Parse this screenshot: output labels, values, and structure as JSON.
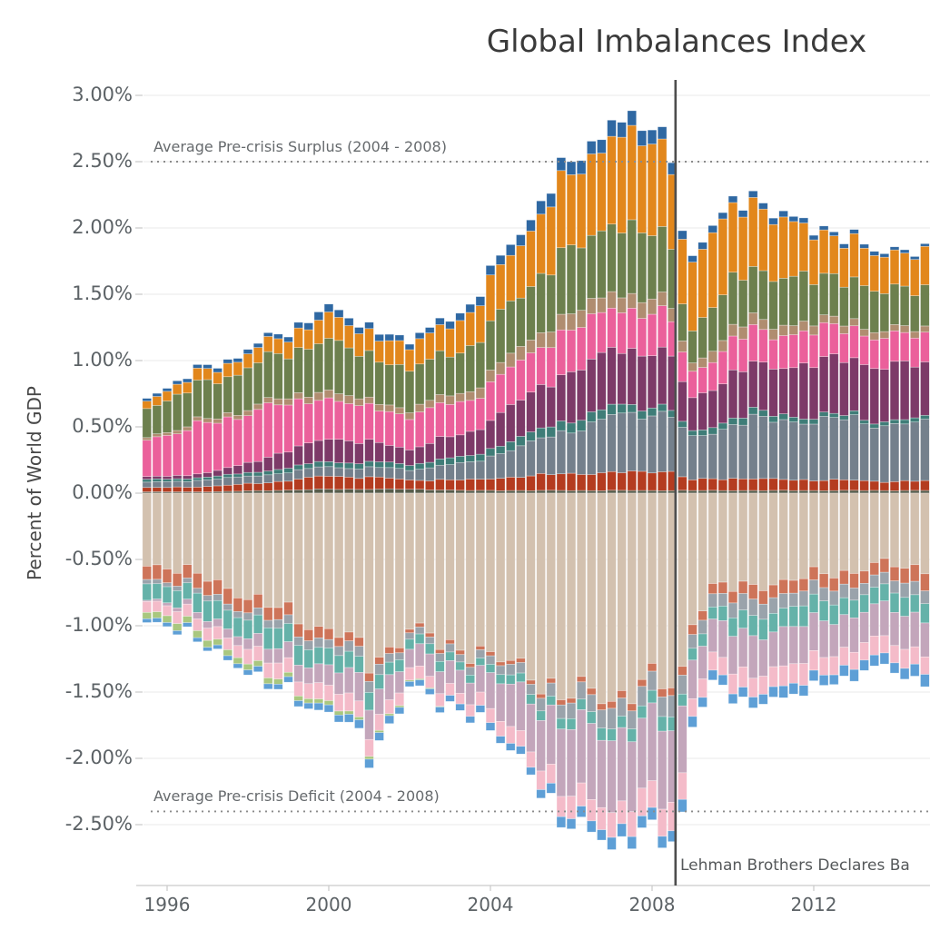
{
  "title": "Global Imbalances Index",
  "y_axis": {
    "label": "Percent of World GDP",
    "tick_labels": [
      "3.00%",
      "2.50%",
      "2.00%",
      "1.50%",
      "1.00%",
      "0.50%",
      "0.00%",
      "-0.50%",
      "-1.00%",
      "-1.50%",
      "-2.00%",
      "-2.50%"
    ],
    "tick_values": [
      3.0,
      2.5,
      2.0,
      1.5,
      1.0,
      0.5,
      0.0,
      -0.5,
      -1.0,
      -1.5,
      -2.0,
      -2.5
    ]
  },
  "x_axis": {
    "tick_labels": [
      "1996",
      "2000",
      "2004",
      "2008",
      "2012"
    ],
    "tick_values": [
      1996,
      2000,
      2004,
      2008,
      2012
    ]
  },
  "annotations": {
    "surplus": {
      "label": "Average Pre-crisis Surplus (2004 - 2008)",
      "value": 2.5
    },
    "deficit": {
      "label": "Average Pre-crisis Deficit (2004 - 2008)",
      "value": -2.4
    },
    "lehman": {
      "label": "Lehman Brothers Declares Ba",
      "x": 2008.58
    }
  },
  "colors": {
    "grid": "#e8e8e8",
    "axis": "#c9c9c9",
    "dotted_line": "#8b8b8b",
    "lehman_line": "#4e4e4e",
    "title_text": "#3a3a3a",
    "tick_text": "#5c6266"
  },
  "chart_data": {
    "type": "bar",
    "stacked": true,
    "orientation": "diverging",
    "x_start": 1995.5,
    "x_step": 0.25,
    "n_bars": 78,
    "xlim": [
      1995.3,
      2014.9
    ],
    "ylim": [
      -2.96,
      3.1
    ],
    "ylabel": "Percent of World GDP",
    "title": "Global Imbalances Index",
    "grid": true,
    "legend": "none (cropped out of view)",
    "units": "percent of world GDP, quarterly",
    "anchor_years": [
      1995.5,
      1997,
      1998.5,
      2000,
      2001,
      2002,
      2003.5,
      2005,
      2006,
      2007,
      2008,
      2008.5,
      2008.75,
      2009,
      2009.5,
      2010.5,
      2011.5,
      2012.5,
      2013.5,
      2014.75
    ],
    "positive_series": [
      {
        "name": "surplus-darkolive",
        "color": "#575c4b",
        "anchors": [
          0.01,
          0.01,
          0.02,
          0.03,
          0.03,
          0.03,
          0.02,
          0.02,
          0.02,
          0.02,
          0.02,
          0.02,
          0.02,
          0.02,
          0.02,
          0.02,
          0.02,
          0.02,
          0.02,
          0.02
        ]
      },
      {
        "name": "surplus-darkred",
        "color": "#b43c20",
        "anchors": [
          0.03,
          0.04,
          0.06,
          0.1,
          0.09,
          0.07,
          0.08,
          0.11,
          0.13,
          0.13,
          0.15,
          0.14,
          0.1,
          0.08,
          0.09,
          0.09,
          0.08,
          0.08,
          0.07,
          0.07
        ]
      },
      {
        "name": "surplus-gray",
        "color": "#74808c",
        "anchors": [
          0.04,
          0.05,
          0.06,
          0.07,
          0.07,
          0.08,
          0.13,
          0.25,
          0.33,
          0.42,
          0.45,
          0.42,
          0.35,
          0.31,
          0.36,
          0.45,
          0.44,
          0.46,
          0.44,
          0.42
        ]
      },
      {
        "name": "surplus-teal",
        "color": "#3f7d78",
        "anchors": [
          0.02,
          0.02,
          0.03,
          0.04,
          0.04,
          0.04,
          0.05,
          0.07,
          0.08,
          0.07,
          0.06,
          0.05,
          0.04,
          0.04,
          0.05,
          0.05,
          0.04,
          0.03,
          0.03,
          0.03
        ]
      },
      {
        "name": "surplus-purple",
        "color": "#7d3a68",
        "anchors": [
          0.02,
          0.03,
          0.1,
          0.18,
          0.15,
          0.12,
          0.18,
          0.3,
          0.37,
          0.42,
          0.42,
          0.38,
          0.3,
          0.26,
          0.3,
          0.35,
          0.38,
          0.42,
          0.42,
          0.4
        ]
      },
      {
        "name": "surplus-pink",
        "color": "#eb609b",
        "anchors": [
          0.29,
          0.37,
          0.38,
          0.3,
          0.26,
          0.25,
          0.25,
          0.3,
          0.32,
          0.31,
          0.3,
          0.27,
          0.22,
          0.2,
          0.22,
          0.26,
          0.24,
          0.24,
          0.22,
          0.22
        ]
      },
      {
        "name": "surplus-tan",
        "color": "#b08d70",
        "anchors": [
          0.02,
          0.03,
          0.04,
          0.06,
          0.05,
          0.05,
          0.07,
          0.11,
          0.12,
          0.12,
          0.11,
          0.1,
          0.08,
          0.07,
          0.08,
          0.09,
          0.07,
          0.06,
          0.05,
          0.05
        ]
      },
      {
        "name": "surplus-olive",
        "color": "#6d804e",
        "anchors": [
          0.22,
          0.28,
          0.32,
          0.38,
          0.34,
          0.3,
          0.33,
          0.42,
          0.48,
          0.52,
          0.5,
          0.45,
          0.3,
          0.25,
          0.33,
          0.38,
          0.35,
          0.32,
          0.3,
          0.3
        ]
      },
      {
        "name": "surplus-orange",
        "color": "#e2871c",
        "anchors": [
          0.06,
          0.09,
          0.11,
          0.18,
          0.17,
          0.17,
          0.25,
          0.43,
          0.55,
          0.67,
          0.68,
          0.63,
          0.48,
          0.5,
          0.55,
          0.51,
          0.39,
          0.31,
          0.27,
          0.27
        ]
      },
      {
        "name": "surplus-blue",
        "color": "#2f68a2",
        "anchors": [
          0.02,
          0.03,
          0.03,
          0.06,
          0.05,
          0.04,
          0.06,
          0.09,
          0.1,
          0.11,
          0.11,
          0.09,
          0.06,
          0.05,
          0.05,
          0.05,
          0.04,
          0.03,
          0.03,
          0.02
        ]
      }
    ],
    "negative_series": [
      {
        "name": "deficit-beige",
        "color": "#d3c1af",
        "anchors": [
          0.52,
          0.64,
          0.85,
          1.02,
          1.25,
          1.05,
          1.18,
          1.35,
          1.55,
          1.5,
          1.45,
          1.45,
          1.3,
          0.95,
          0.72,
          0.7,
          0.65,
          0.6,
          0.55,
          0.55
        ]
      },
      {
        "name": "deficit-salmon",
        "color": "#ce7459",
        "anchors": [
          0.1,
          0.11,
          0.1,
          0.08,
          0.06,
          0.03,
          0.03,
          0.03,
          0.04,
          0.05,
          0.06,
          0.06,
          0.06,
          0.07,
          0.08,
          0.1,
          0.1,
          0.1,
          0.1,
          0.12
        ]
      },
      {
        "name": "deficit-gray",
        "color": "#9aa3ab",
        "anchors": [
          0.03,
          0.04,
          0.06,
          0.07,
          0.08,
          0.05,
          0.06,
          0.08,
          0.12,
          0.14,
          0.15,
          0.15,
          0.13,
          0.11,
          0.1,
          0.12,
          0.11,
          0.1,
          0.09,
          0.1
        ]
      },
      {
        "name": "deficit-teal",
        "color": "#65b2a9",
        "anchors": [
          0.12,
          0.14,
          0.15,
          0.13,
          0.12,
          0.08,
          0.06,
          0.07,
          0.08,
          0.09,
          0.1,
          0.1,
          0.09,
          0.09,
          0.1,
          0.15,
          0.15,
          0.14,
          0.13,
          0.14
        ]
      },
      {
        "name": "deficit-mauve",
        "color": "#c3a6bb",
        "anchors": [
          0.01,
          0.05,
          0.1,
          0.15,
          0.22,
          0.15,
          0.18,
          0.38,
          0.52,
          0.55,
          0.55,
          0.56,
          0.48,
          0.3,
          0.25,
          0.3,
          0.28,
          0.26,
          0.24,
          0.26
        ]
      },
      {
        "name": "deficit-lightpink",
        "color": "#f4bbc9",
        "anchors": [
          0.08,
          0.09,
          0.11,
          0.12,
          0.13,
          0.09,
          0.09,
          0.13,
          0.16,
          0.18,
          0.2,
          0.21,
          0.2,
          0.15,
          0.13,
          0.15,
          0.15,
          0.14,
          0.13,
          0.14
        ]
      },
      {
        "name": "deficit-lightgreen",
        "color": "#a9c77f",
        "anchors": [
          0.05,
          0.05,
          0.04,
          0.03,
          0.02,
          0.01,
          0.0,
          0.0,
          0.0,
          0.0,
          0.0,
          0.0,
          0.0,
          0.0,
          0.0,
          0.0,
          0.0,
          0.0,
          0.0,
          0.0
        ]
      },
      {
        "name": "deficit-lightblue",
        "color": "#5e9fd6",
        "anchors": [
          0.03,
          0.03,
          0.04,
          0.05,
          0.07,
          0.04,
          0.05,
          0.06,
          0.08,
          0.09,
          0.09,
          0.09,
          0.09,
          0.08,
          0.07,
          0.08,
          0.08,
          0.08,
          0.08,
          0.09
        ]
      }
    ]
  }
}
